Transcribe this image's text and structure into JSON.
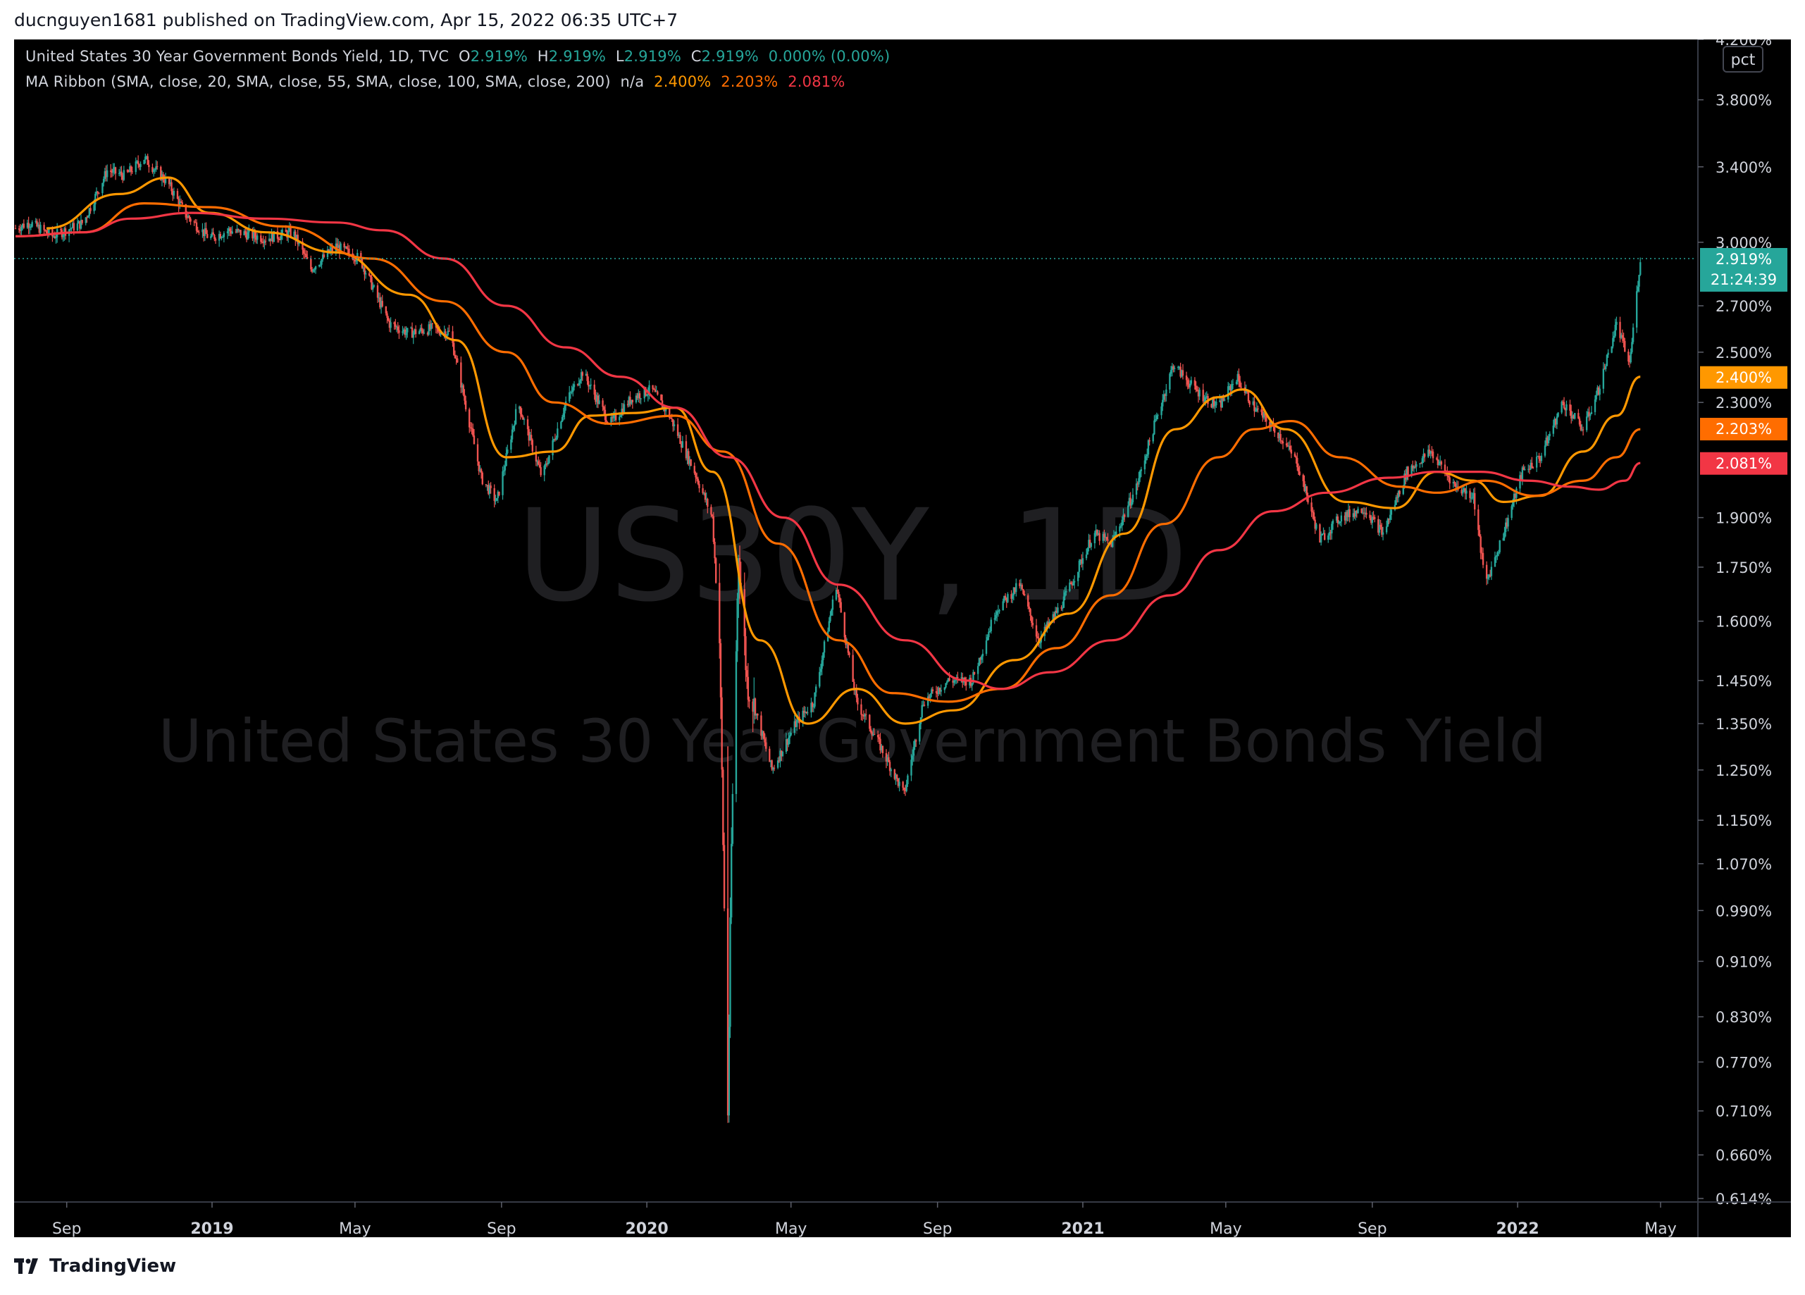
{
  "publish_bar": {
    "text": "ducnguyen1681 published on TradingView.com, Apr 15, 2022 06:35 UTC+7"
  },
  "legend": {
    "symbol": "United States 30 Year Government Bonds Yield, 1D, TVC",
    "o_label": "O",
    "o_value": "2.919%",
    "h_label": "H",
    "h_value": "2.919%",
    "l_label": "L",
    "l_value": "2.919%",
    "c_label": "C",
    "c_value": "2.919%",
    "change": "0.000% (0.00%)",
    "ma_title": "MA Ribbon (SMA, close, 20, SMA, close, 55, SMA, close, 100, SMA, close, 200)",
    "ma_na": "n/a",
    "ma1": "2.400%",
    "ma2": "2.203%",
    "ma3": "2.081%"
  },
  "watermark": {
    "symbol": "US30Y, 1D",
    "name": "United States 30 Year Government Bonds Yield"
  },
  "price_scale": {
    "unit_badge": "pct",
    "last_price": "2.919%",
    "countdown": "21:24:39"
  },
  "footer": {
    "brand": "TradingView"
  },
  "colors": {
    "background": "#000000",
    "up_candle": "#26a69a",
    "down_candle": "#ef5350",
    "ma1": "#ff9800",
    "ma2": "#ff6d00",
    "ma3": "#f23645",
    "last_price": "#26a69a",
    "axis_text": "#d1d4dc",
    "grid": "#363a45"
  },
  "chart_data": {
    "type": "candlestick",
    "scale": "log",
    "x_axis": {
      "ticks": [
        "Sep",
        "2019",
        "May",
        "Sep",
        "2020",
        "May",
        "Sep",
        "2021",
        "May",
        "Sep",
        "2022",
        "May"
      ],
      "tick_dates": [
        "2018-09-01",
        "2019-01-01",
        "2019-05-01",
        "2019-09-01",
        "2020-01-01",
        "2020-05-01",
        "2020-09-01",
        "2021-01-01",
        "2021-05-01",
        "2021-09-01",
        "2022-01-01",
        "2022-05-01"
      ]
    },
    "y_axis": {
      "range": [
        0.614,
        4.2
      ],
      "ticks": [
        "4.200%",
        "3.800%",
        "3.400%",
        "3.000%",
        "2.700%",
        "2.500%",
        "2.300%",
        "1.900%",
        "1.750%",
        "1.600%",
        "1.450%",
        "1.350%",
        "1.250%",
        "1.150%",
        "1.070%",
        "0.990%",
        "0.910%",
        "0.830%",
        "0.770%",
        "0.710%",
        "0.660%",
        "0.614%"
      ],
      "tick_values": [
        4.2,
        3.8,
        3.4,
        3.0,
        2.7,
        2.5,
        2.3,
        1.9,
        1.75,
        1.6,
        1.45,
        1.35,
        1.25,
        1.15,
        1.07,
        0.99,
        0.91,
        0.83,
        0.77,
        0.71,
        0.66,
        0.614
      ]
    },
    "start_date": "2018-07-20",
    "end_date": "2022-04-14",
    "series": [
      {
        "name": "US30Y",
        "role": "close",
        "points": [
          [
            "2018-07-20",
            3.07
          ],
          [
            "2018-08-01",
            3.1
          ],
          [
            "2018-08-20",
            3.03
          ],
          [
            "2018-09-15",
            3.1
          ],
          [
            "2018-10-05",
            3.38
          ],
          [
            "2018-10-20",
            3.35
          ],
          [
            "2018-11-05",
            3.45
          ],
          [
            "2018-11-25",
            3.31
          ],
          [
            "2018-12-10",
            3.14
          ],
          [
            "2018-12-30",
            3.02
          ],
          [
            "2019-01-15",
            3.06
          ],
          [
            "2019-02-15",
            3.02
          ],
          [
            "2019-03-10",
            3.05
          ],
          [
            "2019-03-25",
            2.87
          ],
          [
            "2019-04-15",
            2.98
          ],
          [
            "2019-05-05",
            2.92
          ],
          [
            "2019-05-30",
            2.62
          ],
          [
            "2019-06-15",
            2.58
          ],
          [
            "2019-07-05",
            2.6
          ],
          [
            "2019-07-20",
            2.58
          ],
          [
            "2019-08-15",
            2.03
          ],
          [
            "2019-08-28",
            1.95
          ],
          [
            "2019-09-15",
            2.3
          ],
          [
            "2019-10-05",
            2.03
          ],
          [
            "2019-10-25",
            2.3
          ],
          [
            "2019-11-08",
            2.42
          ],
          [
            "2019-12-01",
            2.22
          ],
          [
            "2019-12-20",
            2.32
          ],
          [
            "2020-01-05",
            2.35
          ],
          [
            "2020-01-20",
            2.25
          ],
          [
            "2020-02-10",
            2.05
          ],
          [
            "2020-02-25",
            1.9
          ],
          [
            "2020-03-02",
            1.55
          ],
          [
            "2020-03-09",
            0.71
          ],
          [
            "2020-03-12",
            1.1
          ],
          [
            "2020-03-18",
            1.8
          ],
          [
            "2020-03-25",
            1.45
          ],
          [
            "2020-04-15",
            1.25
          ],
          [
            "2020-05-05",
            1.35
          ],
          [
            "2020-05-20",
            1.4
          ],
          [
            "2020-06-08",
            1.7
          ],
          [
            "2020-06-25",
            1.4
          ],
          [
            "2020-07-15",
            1.3
          ],
          [
            "2020-08-04",
            1.2
          ],
          [
            "2020-08-20",
            1.4
          ],
          [
            "2020-09-10",
            1.45
          ],
          [
            "2020-09-30",
            1.45
          ],
          [
            "2020-10-20",
            1.63
          ],
          [
            "2020-11-09",
            1.7
          ],
          [
            "2020-11-25",
            1.55
          ],
          [
            "2020-12-15",
            1.65
          ],
          [
            "2021-01-10",
            1.85
          ],
          [
            "2021-01-25",
            1.82
          ],
          [
            "2021-02-15",
            2.0
          ],
          [
            "2021-03-01",
            2.2
          ],
          [
            "2021-03-18",
            2.45
          ],
          [
            "2021-04-05",
            2.35
          ],
          [
            "2021-04-25",
            2.28
          ],
          [
            "2021-05-10",
            2.4
          ],
          [
            "2021-05-25",
            2.28
          ],
          [
            "2021-06-15",
            2.18
          ],
          [
            "2021-06-30",
            2.08
          ],
          [
            "2021-07-19",
            1.83
          ],
          [
            "2021-08-05",
            1.9
          ],
          [
            "2021-08-25",
            1.93
          ],
          [
            "2021-09-10",
            1.85
          ],
          [
            "2021-09-30",
            2.05
          ],
          [
            "2021-10-20",
            2.12
          ],
          [
            "2021-11-10",
            2.0
          ],
          [
            "2021-11-25",
            1.97
          ],
          [
            "2021-12-05",
            1.7
          ],
          [
            "2021-12-20",
            1.85
          ],
          [
            "2022-01-05",
            2.05
          ],
          [
            "2022-01-20",
            2.1
          ],
          [
            "2022-02-08",
            2.3
          ],
          [
            "2022-02-25",
            2.2
          ],
          [
            "2022-03-10",
            2.35
          ],
          [
            "2022-03-25",
            2.62
          ],
          [
            "2022-04-05",
            2.45
          ],
          [
            "2022-04-14",
            2.92
          ]
        ]
      },
      {
        "name": "SMA 20",
        "role": "ma1",
        "points": [
          [
            "2018-08-15",
            3.07
          ],
          [
            "2018-10-15",
            3.25
          ],
          [
            "2018-11-25",
            3.34
          ],
          [
            "2018-12-30",
            3.15
          ],
          [
            "2019-02-15",
            3.05
          ],
          [
            "2019-04-15",
            2.95
          ],
          [
            "2019-06-15",
            2.75
          ],
          [
            "2019-07-25",
            2.55
          ],
          [
            "2019-09-05",
            2.1
          ],
          [
            "2019-10-15",
            2.12
          ],
          [
            "2019-11-15",
            2.25
          ],
          [
            "2019-12-20",
            2.26
          ],
          [
            "2020-01-25",
            2.28
          ],
          [
            "2020-02-25",
            2.05
          ],
          [
            "2020-04-05",
            1.55
          ],
          [
            "2020-05-15",
            1.35
          ],
          [
            "2020-06-25",
            1.43
          ],
          [
            "2020-08-05",
            1.35
          ],
          [
            "2020-09-15",
            1.38
          ],
          [
            "2020-11-05",
            1.5
          ],
          [
            "2020-12-20",
            1.62
          ],
          [
            "2021-02-05",
            1.85
          ],
          [
            "2021-03-20",
            2.2
          ],
          [
            "2021-04-25",
            2.32
          ],
          [
            "2021-05-15",
            2.35
          ],
          [
            "2021-06-20",
            2.2
          ],
          [
            "2021-08-10",
            1.95
          ],
          [
            "2021-09-20",
            1.93
          ],
          [
            "2021-10-25",
            2.05
          ],
          [
            "2021-11-25",
            2.02
          ],
          [
            "2021-12-20",
            1.95
          ],
          [
            "2022-01-20",
            1.97
          ],
          [
            "2022-02-25",
            2.12
          ],
          [
            "2022-03-25",
            2.25
          ],
          [
            "2022-04-14",
            2.4
          ]
        ]
      },
      {
        "name": "SMA 55",
        "role": "ma2",
        "points": [
          [
            "2018-07-20",
            3.03
          ],
          [
            "2018-09-15",
            3.05
          ],
          [
            "2018-11-05",
            3.2
          ],
          [
            "2018-12-30",
            3.18
          ],
          [
            "2019-03-01",
            3.08
          ],
          [
            "2019-05-15",
            2.92
          ],
          [
            "2019-07-15",
            2.72
          ],
          [
            "2019-09-05",
            2.5
          ],
          [
            "2019-10-15",
            2.3
          ],
          [
            "2019-12-01",
            2.22
          ],
          [
            "2020-01-25",
            2.25
          ],
          [
            "2020-03-05",
            2.12
          ],
          [
            "2020-04-20",
            1.82
          ],
          [
            "2020-06-10",
            1.55
          ],
          [
            "2020-07-25",
            1.42
          ],
          [
            "2020-09-10",
            1.4
          ],
          [
            "2020-10-25",
            1.43
          ],
          [
            "2020-12-10",
            1.53
          ],
          [
            "2021-01-25",
            1.67
          ],
          [
            "2021-03-10",
            1.88
          ],
          [
            "2021-04-25",
            2.1
          ],
          [
            "2021-05-25",
            2.2
          ],
          [
            "2021-06-25",
            2.23
          ],
          [
            "2021-08-05",
            2.1
          ],
          [
            "2021-09-25",
            2.0
          ],
          [
            "2021-10-25",
            1.98
          ],
          [
            "2021-12-05",
            2.02
          ],
          [
            "2022-01-15",
            1.97
          ],
          [
            "2022-02-25",
            2.02
          ],
          [
            "2022-03-25",
            2.1
          ],
          [
            "2022-04-14",
            2.2
          ]
        ]
      },
      {
        "name": "SMA 100",
        "role": "ma3",
        "points": [
          [
            "2018-07-20",
            3.03
          ],
          [
            "2018-09-15",
            3.05
          ],
          [
            "2018-10-25",
            3.12
          ],
          [
            "2018-12-15",
            3.15
          ],
          [
            "2019-02-15",
            3.12
          ],
          [
            "2019-04-15",
            3.1
          ],
          [
            "2019-05-25",
            3.06
          ],
          [
            "2019-07-15",
            2.92
          ],
          [
            "2019-09-05",
            2.7
          ],
          [
            "2019-10-25",
            2.52
          ],
          [
            "2019-12-10",
            2.4
          ],
          [
            "2020-01-25",
            2.28
          ],
          [
            "2020-03-10",
            2.1
          ],
          [
            "2020-04-25",
            1.9
          ],
          [
            "2020-06-10",
            1.7
          ],
          [
            "2020-08-05",
            1.55
          ],
          [
            "2020-09-25",
            1.45
          ],
          [
            "2020-10-25",
            1.43
          ],
          [
            "2020-12-05",
            1.47
          ],
          [
            "2021-01-25",
            1.55
          ],
          [
            "2021-03-15",
            1.67
          ],
          [
            "2021-04-25",
            1.8
          ],
          [
            "2021-06-10",
            1.92
          ],
          [
            "2021-07-25",
            1.98
          ],
          [
            "2021-09-15",
            2.03
          ],
          [
            "2021-10-25",
            2.05
          ],
          [
            "2021-12-01",
            2.05
          ],
          [
            "2022-01-10",
            2.02
          ],
          [
            "2022-02-15",
            2.0
          ],
          [
            "2022-03-10",
            1.99
          ],
          [
            "2022-04-01",
            2.02
          ],
          [
            "2022-04-14",
            2.08
          ]
        ]
      }
    ]
  }
}
